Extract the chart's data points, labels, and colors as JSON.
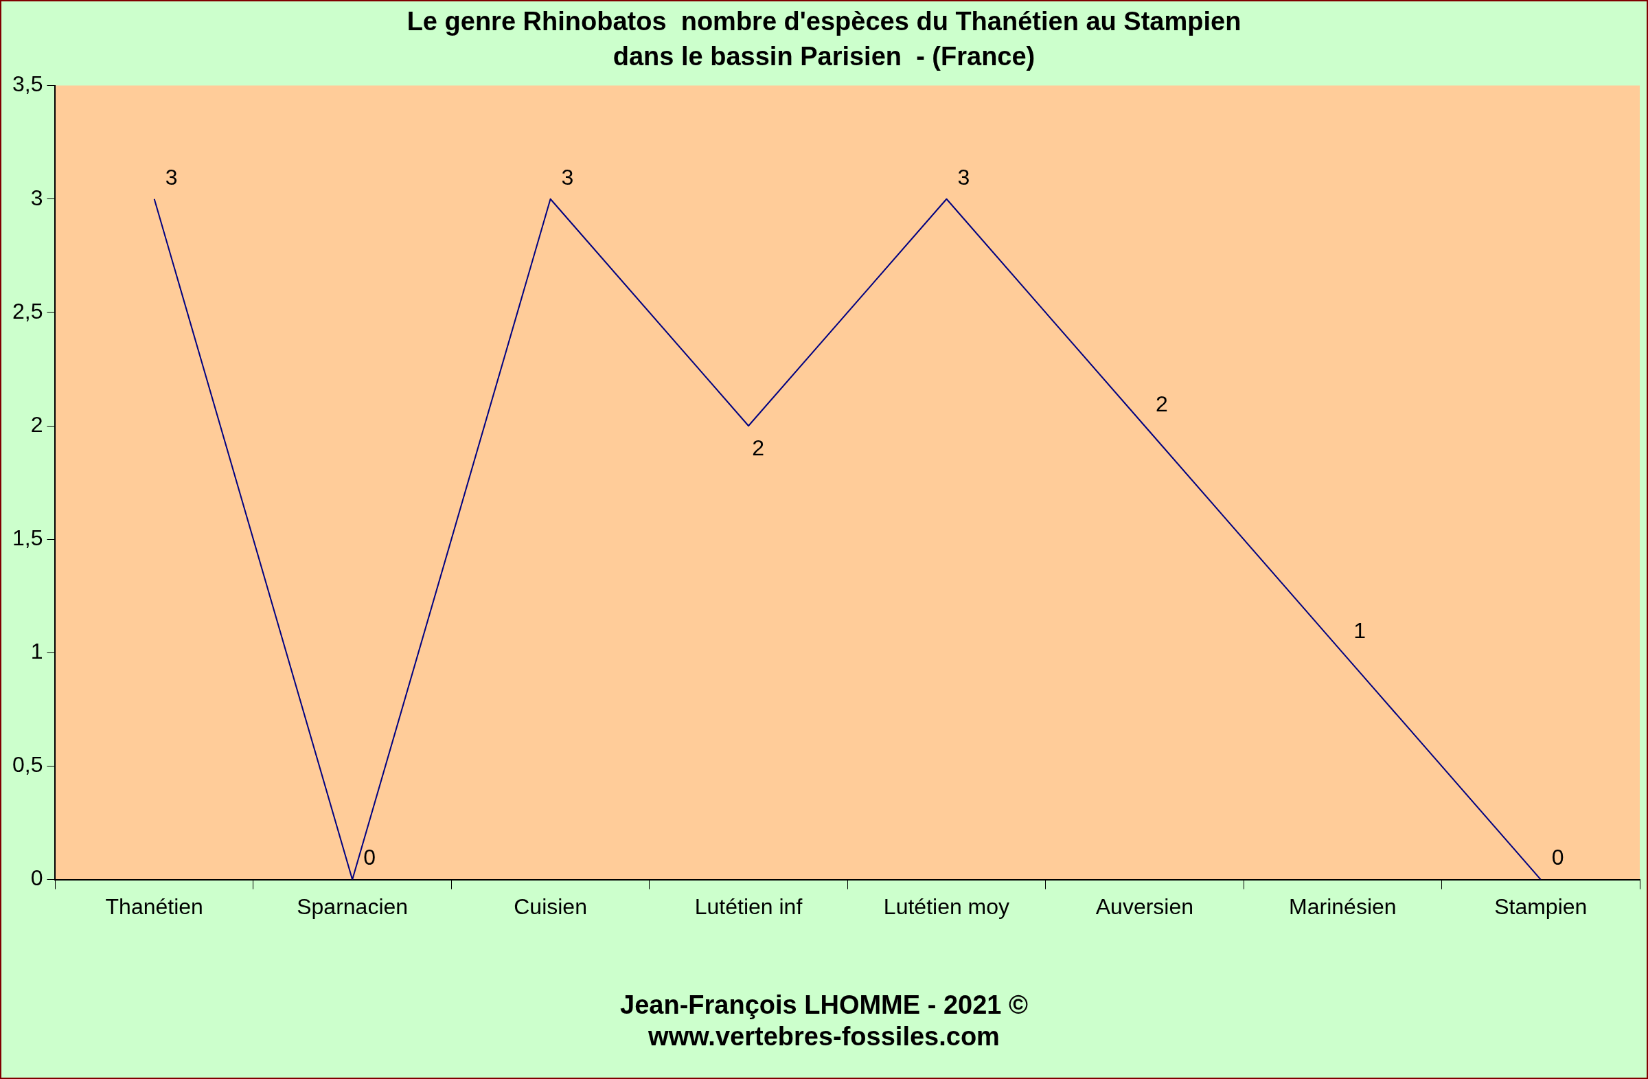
{
  "chart_data": {
    "type": "line",
    "title": "Le genre Rhinobatos  nombre d'espèces du Thanétien au Stampien\ndans le bassin Parisien  - (France)",
    "categories": [
      "Thanétien",
      "Sparnacien",
      "Cuisien",
      "Lutétien inf",
      "Lutétien moy",
      "Auversien",
      "Marinésien",
      "Stampien"
    ],
    "series": [
      {
        "color": "#000080",
        "values": [
          3,
          0,
          3,
          2,
          3,
          2,
          1,
          0
        ]
      }
    ],
    "ylim": [
      0,
      3.5
    ],
    "yticks": [
      0,
      {
        "value": 0.5,
        "label": "0,5"
      },
      1,
      {
        "value": 1.5,
        "label": "1,5"
      },
      2,
      {
        "value": 2.5,
        "label": "2,5"
      },
      3,
      {
        "value": 3.5,
        "label": "3,5"
      }
    ],
    "data_labels": true,
    "grid": false,
    "legend": false,
    "marker": "none",
    "line_style": "solid",
    "annotations": [
      "Jean-François LHOMME - 2021 ©",
      "www.vertebres-fossiles.com"
    ]
  }
}
